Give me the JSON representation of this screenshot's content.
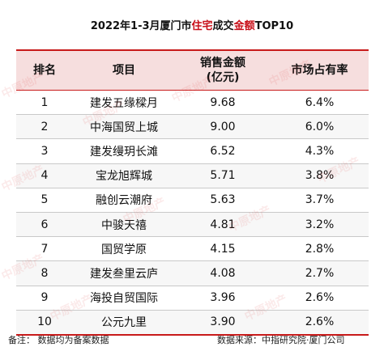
{
  "title": {
    "prefix": "2022年1-3月厦门市",
    "hl1": "住宅",
    "mid": "成交",
    "hl2": "金额",
    "suffix": "TOP10"
  },
  "headers": {
    "rank": "排名",
    "project": "项目",
    "sales": "销售金额\n(亿元)",
    "share": "市场占有率"
  },
  "rows": [
    {
      "rank": "1",
      "project": "建发五缘樑月",
      "sales": "9.68",
      "share": "6.4%"
    },
    {
      "rank": "2",
      "project": "中海国贸上城",
      "sales": "9.00",
      "share": "6.0%"
    },
    {
      "rank": "3",
      "project": "建发缦玥长滩",
      "sales": "6.52",
      "share": "4.3%"
    },
    {
      "rank": "4",
      "project": "宝龙旭辉城",
      "sales": "5.71",
      "share": "3.8%"
    },
    {
      "rank": "5",
      "project": "融创云潮府",
      "sales": "5.63",
      "share": "3.7%"
    },
    {
      "rank": "6",
      "project": "中骏天禧",
      "sales": "4.81",
      "share": "3.2%"
    },
    {
      "rank": "7",
      "project": "国贸学原",
      "sales": "4.15",
      "share": "2.8%"
    },
    {
      "rank": "8",
      "project": "建发叁里云庐",
      "sales": "4.08",
      "share": "2.7%"
    },
    {
      "rank": "9",
      "project": "海投自贸国际",
      "sales": "3.96",
      "share": "2.6%"
    },
    {
      "rank": "10",
      "project": "公元九里",
      "sales": "3.90",
      "share": "2.6%"
    }
  ],
  "footer": {
    "note": "备注：  数据均为备案数据",
    "source": "数据来源：中指研究院·厦门公司"
  },
  "watermark": "中原地产",
  "colors": {
    "accent": "#c81a1a",
    "header_bg": "#f6dede"
  }
}
